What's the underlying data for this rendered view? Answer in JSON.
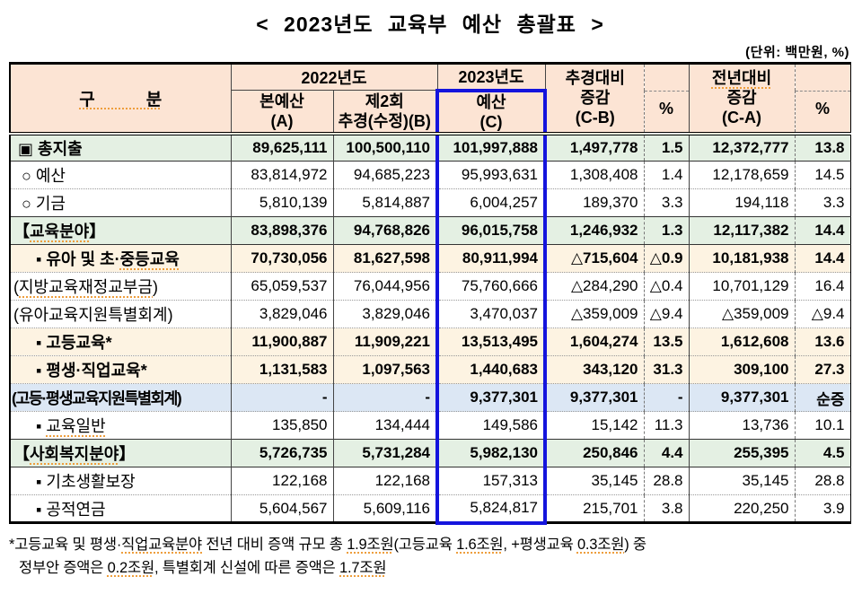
{
  "title": "< 2023년도 교육부 예산 총괄표 >",
  "unit_note": "(단위: 백만원, %)",
  "colors": {
    "header_bg": "#fce4d4",
    "green": "#e4f0e3",
    "cream": "#fdf3e2",
    "bluerow": "#dce7f4",
    "boxblue": "#1414dd",
    "squiggle": "#ee9e3d"
  },
  "header": {
    "col_category": "구　　　분",
    "group_2022": "2022년도",
    "group_2023": "2023년도",
    "col_a": {
      "l1": "본예산",
      "l2": "(A)"
    },
    "col_b": {
      "l1": "제2회",
      "l2": "추경(수정)(B)"
    },
    "col_c": {
      "l1": "예산",
      "l2": "(C)"
    },
    "col_cb": {
      "l1": "추경대비",
      "l2": "증감",
      "l3": "(C-B)"
    },
    "col_pct_cb": "%",
    "col_ca": {
      "l1": "전년대비",
      "l2": "증감",
      "l3": "(C-A)"
    },
    "col_pct_ca": "%"
  },
  "rows": [
    {
      "label_pre": "▣ 총지출",
      "label_u": "",
      "label_post": "",
      "a": "89,625,111",
      "b": "100,500,110",
      "c": "101,997,888",
      "cb": "1,497,778",
      "p1": "1.5",
      "ca": "12,372,777",
      "p2": "13.8",
      "bg": "green",
      "bold": true,
      "sep": "none",
      "indent": 8,
      "condensed": false
    },
    {
      "label_pre": "○ 예산",
      "label_u": "",
      "label_post": "",
      "a": "83,814,972",
      "b": "94,685,223",
      "c": "95,993,631",
      "cb": "1,308,408",
      "p1": "1.4",
      "ca": "12,178,659",
      "p2": "14.5",
      "bg": "white",
      "bold": false,
      "sep": "solid",
      "indent": 12,
      "condensed": false
    },
    {
      "label_pre": "○ 기금",
      "label_u": "",
      "label_post": "",
      "a": "5,810,139",
      "b": "5,814,887",
      "c": "6,004,257",
      "cb": "189,370",
      "p1": "3.3",
      "ca": "194,118",
      "p2": "3.3",
      "bg": "white",
      "bold": false,
      "sep": "dotted",
      "indent": 12,
      "condensed": false
    },
    {
      "label_pre": "【",
      "label_u": "교육분야",
      "label_post": "】",
      "a": "83,898,376",
      "b": "94,768,826",
      "c": "96,015,758",
      "cb": "1,246,932",
      "p1": "1.3",
      "ca": "12,117,382",
      "p2": "14.4",
      "bg": "green",
      "bold": true,
      "sep": "solid",
      "indent": 3,
      "condensed": false
    },
    {
      "label_pre": "▪ 유아 및 초·",
      "label_u": "중등교육",
      "label_post": "",
      "a": "70,730,056",
      "b": "81,627,598",
      "c": "80,911,994",
      "cb": "△715,604",
      "p1": "△0.9",
      "ca": "10,181,938",
      "p2": "14.4",
      "bg": "cream",
      "bold": true,
      "sep": "solid",
      "indent": 28,
      "condensed": false
    },
    {
      "label_pre": "(",
      "label_u": "지방교육재정교부금",
      "label_post": ")",
      "a": "65,059,537",
      "b": "76,044,956",
      "c": "75,760,666",
      "cb": "△284,290",
      "p1": "△0.4",
      "ca": "10,701,129",
      "p2": "16.4",
      "bg": "white",
      "bold": false,
      "sep": "dotted",
      "indent": 3,
      "condensed": false
    },
    {
      "label_pre": "(유아교육지원특별회계)",
      "label_u": "",
      "label_post": "",
      "a": "3,829,046",
      "b": "3,829,046",
      "c": "3,470,037",
      "cb": "△359,009",
      "p1": "△9.4",
      "ca": "△359,009",
      "p2": "△9.4",
      "bg": "white",
      "bold": false,
      "sep": "dotted",
      "indent": 3,
      "condensed": false
    },
    {
      "label_pre": "▪ 고등교육*",
      "label_u": "",
      "label_post": "",
      "a": "11,900,887",
      "b": "11,909,221",
      "c": "13,513,495",
      "cb": "1,604,274",
      "p1": "13.5",
      "ca": "1,612,608",
      "p2": "13.6",
      "bg": "cream",
      "bold": true,
      "sep": "dotted",
      "indent": 28,
      "condensed": false
    },
    {
      "label_pre": "▪ 평생·직업교육*",
      "label_u": "",
      "label_post": "",
      "a": "1,131,583",
      "b": "1,097,563",
      "c": "1,440,683",
      "cb": "343,120",
      "p1": "31.3",
      "ca": "309,100",
      "p2": "27.3",
      "bg": "cream",
      "bold": true,
      "sep": "dotted",
      "indent": 28,
      "condensed": false
    },
    {
      "label_pre": "(고등·평생교육지원특별회계)",
      "label_u": "",
      "label_post": "",
      "a": "-",
      "b": "-",
      "c": "9,377,301",
      "cb": "9,377,301",
      "p1": "-",
      "ca": "9,377,301",
      "p2": "순증",
      "bg": "blue",
      "bold": true,
      "sep": "dotted",
      "indent": 1,
      "condensed": true
    },
    {
      "label_pre": "▪ ",
      "label_u": "교육일반",
      "label_post": "",
      "a": "135,850",
      "b": "134,444",
      "c": "149,586",
      "cb": "15,142",
      "p1": "11.3",
      "ca": "13,736",
      "p2": "10.1",
      "bg": "white",
      "bold": false,
      "sep": "dotted",
      "indent": 28,
      "condensed": false
    },
    {
      "label_pre": "【",
      "label_u": "사회복지분야",
      "label_post": "】",
      "a": "5,726,735",
      "b": "5,731,284",
      "c": "5,982,130",
      "cb": "250,846",
      "p1": "4.4",
      "ca": "255,395",
      "p2": "4.5",
      "bg": "green",
      "bold": true,
      "sep": "solid",
      "indent": 3,
      "condensed": false
    },
    {
      "label_pre": "▪ 기초생활보장",
      "label_u": "",
      "label_post": "",
      "a": "122,168",
      "b": "122,168",
      "c": "157,313",
      "cb": "35,145",
      "p1": "28.8",
      "ca": "35,145",
      "p2": "28.8",
      "bg": "white",
      "bold": false,
      "sep": "solid",
      "indent": 28,
      "condensed": false
    },
    {
      "label_pre": "▪ 공적연금",
      "label_u": "",
      "label_post": "",
      "a": "5,604,567",
      "b": "5,609,116",
      "c": "5,824,817",
      "cb": "215,701",
      "p1": "3.8",
      "ca": "220,250",
      "p2": "3.9",
      "bg": "white",
      "bold": false,
      "sep": "dotted",
      "indent": 28,
      "condensed": false
    }
  ],
  "footnote": {
    "line1": [
      {
        "t": "*고등교육 및 평생·",
        "u": false
      },
      {
        "t": "직업교육분야",
        "u": true
      },
      {
        "t": " 전년 대비 증액 규모 총 ",
        "u": false
      },
      {
        "t": "1.9조원",
        "u": true
      },
      {
        "t": "(고등교육 ",
        "u": false
      },
      {
        "t": "1.6조원",
        "u": true
      },
      {
        "t": ", +평생교육 ",
        "u": false
      },
      {
        "t": "0.3조원",
        "u": true
      },
      {
        "t": ") 중",
        "u": false
      }
    ],
    "line2": [
      {
        "t": "정부안 증액은 ",
        "u": false
      },
      {
        "t": "0.2조원",
        "u": true
      },
      {
        "t": ", 특별회계 신설에 따른 증액은 ",
        "u": false
      },
      {
        "t": "1.7조원",
        "u": true
      }
    ]
  }
}
